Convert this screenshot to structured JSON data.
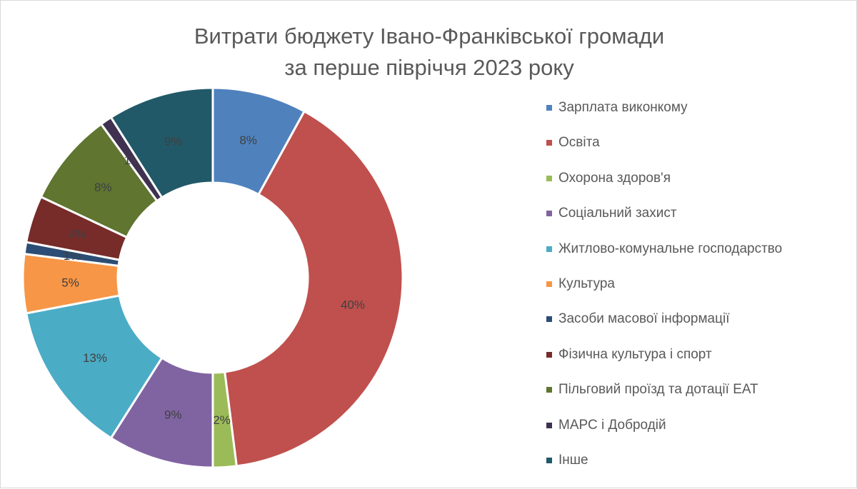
{
  "chart_data": {
    "type": "pie",
    "variant": "donut",
    "title_lines": [
      "Витрати бюджету Івано-Франківської громади",
      "за перше півріччя 2023 року"
    ],
    "legend_position": "right",
    "data_labels_unit": "%",
    "slices": [
      {
        "label": "Зарплата виконкому",
        "value": 8,
        "data_label": "8%",
        "color": "#4f81bd"
      },
      {
        "label": "Освіта",
        "value": 40,
        "data_label": "40%",
        "color": "#c0504d"
      },
      {
        "label": "Охорона здоров'я",
        "value": 2,
        "data_label": "2%",
        "color": "#9bbb59"
      },
      {
        "label": "Соціальний захист",
        "value": 9,
        "data_label": "9%",
        "color": "#8064a2"
      },
      {
        "label": "Житлово-комунальне господарство",
        "value": 13,
        "data_label": "13%",
        "color": "#4bacc6"
      },
      {
        "label": "Культура",
        "value": 5,
        "data_label": "5%",
        "color": "#f79646"
      },
      {
        "label": "Засоби масової інформації",
        "value": 1,
        "data_label": "1%",
        "color": "#2c4d75"
      },
      {
        "label": "Фізична культура і спорт",
        "value": 4,
        "data_label": "4%",
        "color": "#772c2a"
      },
      {
        "label": "Пільговий проїзд та дотації ЕАТ",
        "value": 8,
        "data_label": "8%",
        "color": "#5f7530"
      },
      {
        "label": "МАРС і Добродій",
        "value": 1,
        "data_label": "1%",
        "color": "#403151"
      },
      {
        "label": "Інше",
        "value": 9,
        "data_label": "9%",
        "color": "#215968"
      }
    ]
  }
}
